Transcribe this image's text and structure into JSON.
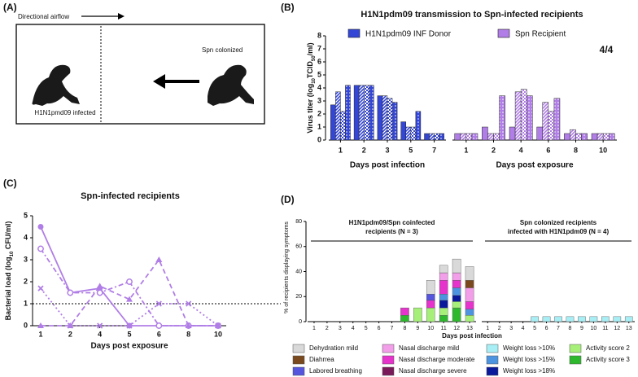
{
  "panel_labels": [
    "(A)",
    "(B)",
    "(C)",
    "(D)"
  ],
  "diagram": {
    "airflow": "Directional airflow",
    "colonized": "Spn colonized",
    "infected": "H1N1pmd09 infected"
  },
  "chart_data": [
    {
      "type": "grouped-bar",
      "title": "H1N1pdm09 transmission to Spn-infected recipients",
      "y_label": [
        "Virus titer (log",
        "10",
        "TCID",
        "50",
        "/ml)"
      ],
      "annotation": "4/4",
      "ylim": [
        0,
        8
      ],
      "yticks": [
        0,
        1,
        2,
        3,
        4,
        5,
        6,
        7,
        8
      ],
      "series": [
        {
          "name": "H1N1pdm09 INF Donor",
          "color": "#3346d6",
          "x_label": "Days post infection",
          "categories": [
            1,
            2,
            3,
            5,
            7
          ],
          "values": [
            [
              2.7,
              3.7,
              2.2,
              4.2
            ],
            [
              4.2,
              4.2,
              4.2,
              4.2
            ],
            [
              3.4,
              3.4,
              3.2,
              2.9
            ],
            [
              1.4,
              1.0,
              1.0,
              2.2
            ],
            [
              0.5,
              0.5,
              0.5,
              0.5
            ]
          ]
        },
        {
          "name": "Spn Recipient",
          "color": "#b07ee6",
          "x_label": "Days post exposure",
          "categories": [
            1,
            2,
            4,
            6,
            8,
            10
          ],
          "values": [
            [
              0.5,
              0.5,
              0.5,
              0.5
            ],
            [
              1.0,
              0.5,
              0.5,
              3.4
            ],
            [
              1.0,
              3.7,
              3.9,
              3.4
            ],
            [
              1.0,
              2.9,
              2.2,
              3.2
            ],
            [
              0.5,
              0.8,
              0.5,
              0.5
            ],
            [
              0.5,
              0.5,
              0.5,
              0.5
            ]
          ]
        }
      ]
    },
    {
      "type": "line",
      "title": "Spn-infected recipients",
      "y_label": [
        "Bacterial load (log",
        "10",
        " CFU/ml)"
      ],
      "x_label": "Days post exposure",
      "categories": [
        1,
        2,
        4,
        5,
        6,
        8,
        10
      ],
      "ylim": [
        0,
        5
      ],
      "yticks": [
        0,
        1,
        2,
        3,
        4,
        5
      ],
      "reference_line": 1,
      "series": [
        {
          "color": "#b07ee6",
          "linestyle": "solid",
          "marker": "circle",
          "values": [
            4.5,
            1.5,
            1.7,
            0,
            0,
            0,
            0
          ]
        },
        {
          "color": "#b07ee6",
          "linestyle": "dashdot",
          "marker": "open-circle",
          "values": [
            3.5,
            1.5,
            1.5,
            2.0,
            0,
            0,
            0
          ]
        },
        {
          "color": "#b07ee6",
          "linestyle": "dashed",
          "marker": "triangle",
          "values": [
            0,
            0,
            1.8,
            1.2,
            3.0,
            0,
            0
          ]
        },
        {
          "color": "#b07ee6",
          "linestyle": "dotted",
          "marker": "x",
          "values": [
            1.7,
            0,
            0,
            0,
            1.0,
            1.0,
            0
          ]
        }
      ]
    },
    {
      "type": "stacked-bar",
      "y_label": "% of recipients displaying symptoms",
      "x_label": "Days post infection",
      "groups": [
        {
          "label": [
            "H1N1pdm09/Spn coinfected",
            "recipients (N = 3)"
          ],
          "count": 13
        },
        {
          "label": [
            "Spn colonized recipients",
            "infected with H1N1pdm09 (N = 4)"
          ],
          "count": 13
        }
      ],
      "categories": [
        1,
        2,
        3,
        4,
        5,
        6,
        7,
        8,
        9,
        10,
        11,
        12,
        13,
        1,
        2,
        3,
        4,
        5,
        6,
        7,
        8,
        9,
        10,
        11,
        12,
        13
      ],
      "ylim": [
        0,
        80
      ],
      "yticks": [
        0,
        20,
        40,
        60,
        80
      ],
      "series": [
        {
          "name": "Activity score 3",
          "color": "#2eb82e",
          "values": [
            0,
            0,
            0,
            0,
            0,
            0,
            0,
            5,
            0,
            0,
            5,
            11,
            0,
            0,
            0,
            0,
            0,
            0,
            0,
            0,
            0,
            0,
            0,
            0,
            0,
            0
          ]
        },
        {
          "name": "Activity score 2",
          "color": "#a6f07a",
          "values": [
            0,
            0,
            0,
            0,
            0,
            0,
            0,
            0,
            11,
            11,
            6,
            5,
            5,
            0,
            0,
            0,
            0,
            0,
            0,
            0,
            0,
            0,
            0,
            0,
            0,
            0
          ]
        },
        {
          "name": "Weight loss >18%",
          "color": "#0a1a9a",
          "values": [
            0,
            0,
            0,
            0,
            0,
            0,
            0,
            0,
            0,
            0,
            6,
            5,
            0,
            0,
            0,
            0,
            0,
            0,
            0,
            0,
            0,
            0,
            0,
            0,
            0,
            0
          ]
        },
        {
          "name": "Weight loss >15%",
          "color": "#4d94e0",
          "values": [
            0,
            0,
            0,
            0,
            0,
            0,
            0,
            0,
            0,
            0,
            5,
            6,
            5,
            0,
            0,
            0,
            0,
            0,
            0,
            0,
            0,
            0,
            0,
            0,
            0,
            0
          ]
        },
        {
          "name": "Weight loss >10%",
          "color": "#a8eef5",
          "values": [
            0,
            0,
            0,
            0,
            0,
            0,
            0,
            0,
            0,
            0,
            0,
            0,
            0,
            0,
            0,
            0,
            0,
            4,
            4,
            4,
            4,
            4,
            4,
            4,
            4,
            4
          ]
        },
        {
          "name": "Nasal discharge severe",
          "color": "#7a1a5a",
          "values": [
            0,
            0,
            0,
            0,
            0,
            0,
            0,
            0,
            0,
            0,
            0,
            0,
            0,
            0,
            0,
            0,
            0,
            0,
            0,
            0,
            0,
            0,
            0,
            0,
            0,
            0
          ]
        },
        {
          "name": "Nasal discharge moderate",
          "color": "#e633cc",
          "values": [
            0,
            0,
            0,
            0,
            0,
            0,
            0,
            6,
            0,
            6,
            11,
            6,
            6,
            0,
            0,
            0,
            0,
            0,
            0,
            0,
            0,
            0,
            0,
            0,
            0,
            0
          ]
        },
        {
          "name": "Nasal discharge mild",
          "color": "#f29ee8",
          "values": [
            0,
            0,
            0,
            0,
            0,
            0,
            0,
            0,
            0,
            0,
            6,
            6,
            11,
            0,
            0,
            0,
            0,
            0,
            0,
            0,
            0,
            0,
            0,
            0,
            0,
            0
          ]
        },
        {
          "name": "Labored breathing",
          "color": "#5555dd",
          "values": [
            0,
            0,
            0,
            0,
            0,
            0,
            0,
            0,
            0,
            5,
            0,
            0,
            0,
            0,
            0,
            0,
            0,
            0,
            0,
            0,
            0,
            0,
            0,
            0,
            0,
            0
          ]
        },
        {
          "name": "Diahrrea",
          "color": "#7a4a1e",
          "values": [
            0,
            0,
            0,
            0,
            0,
            0,
            0,
            0,
            0,
            0,
            0,
            0,
            6,
            0,
            0,
            0,
            0,
            0,
            0,
            0,
            0,
            0,
            0,
            0,
            0,
            0
          ]
        },
        {
          "name": "Dehydration mild",
          "color": "#d9d9d9",
          "values": [
            0,
            0,
            0,
            0,
            0,
            0,
            0,
            0,
            0,
            11,
            6,
            11,
            11,
            0,
            0,
            0,
            0,
            0,
            0,
            0,
            0,
            0,
            0,
            0,
            0,
            0
          ]
        }
      ],
      "legend_order": [
        10,
        9,
        8,
        7,
        6,
        5,
        4,
        3,
        2,
        1,
        0
      ]
    }
  ]
}
